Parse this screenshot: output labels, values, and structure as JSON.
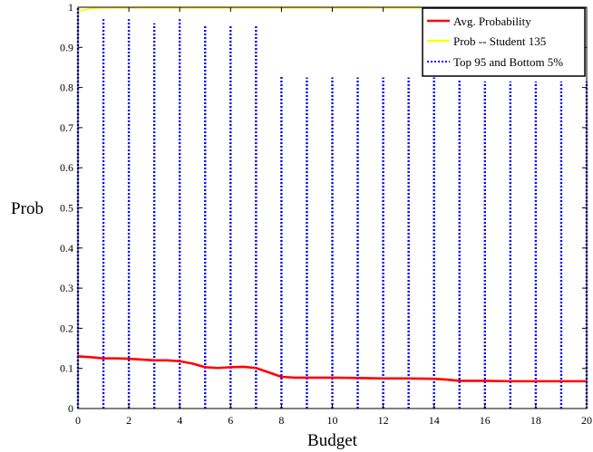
{
  "chart_data": {
    "type": "line",
    "xlabel": "Budget",
    "ylabel": "Prob",
    "xlim": [
      0,
      20
    ],
    "ylim": [
      0,
      1
    ],
    "xticks": [
      0,
      2,
      4,
      6,
      8,
      10,
      12,
      14,
      16,
      18,
      20
    ],
    "yticks": [
      0,
      0.1,
      0.2,
      0.3,
      0.4,
      0.5,
      0.6,
      0.7,
      0.8,
      0.9,
      1
    ],
    "grid": false,
    "legend_position": "top-right",
    "legend": [
      {
        "label": "Avg. Probability",
        "color": "#ff0000",
        "style": "solid"
      },
      {
        "label": "Prob -- Student 135",
        "color": "#ffff00",
        "style": "solid"
      },
      {
        "label": "Top 95 and Bottom 5%",
        "color": "#0000ff",
        "style": "dotted"
      }
    ],
    "series": [
      {
        "name": "Avg. Probability",
        "color": "#ff0000",
        "x": [
          0,
          0.5,
          1,
          1.5,
          2,
          2.5,
          3,
          3.5,
          4,
          4.5,
          5,
          5.5,
          6,
          6.5,
          7,
          7.5,
          8,
          8.5,
          9,
          9.5,
          10,
          11,
          12,
          13,
          14,
          14.5,
          15,
          16,
          17,
          18,
          19,
          20
        ],
        "y": [
          0.13,
          0.128,
          0.125,
          0.125,
          0.124,
          0.122,
          0.12,
          0.12,
          0.118,
          0.112,
          0.103,
          0.101,
          0.103,
          0.104,
          0.101,
          0.09,
          0.079,
          0.077,
          0.077,
          0.077,
          0.077,
          0.076,
          0.075,
          0.075,
          0.074,
          0.072,
          0.069,
          0.069,
          0.068,
          0.068,
          0.068,
          0.068
        ]
      },
      {
        "name": "Prob -- Student 135",
        "color": "#ffff00",
        "x": [
          0,
          0.5,
          1,
          2,
          4,
          6,
          8,
          10,
          12,
          14,
          16,
          18,
          20
        ],
        "y": [
          0.99,
          0.997,
          0.999,
          0.999,
          0.999,
          0.999,
          0.999,
          0.999,
          0.999,
          0.999,
          0.999,
          0.999,
          0.999
        ]
      },
      {
        "name": "Top 95 and Bottom 5%",
        "color": "#0000ff",
        "bars": [
          {
            "x": 0,
            "low": 0,
            "high": 1.0
          },
          {
            "x": 1,
            "low": 0,
            "high": 0.97
          },
          {
            "x": 2,
            "low": 0,
            "high": 0.97
          },
          {
            "x": 3,
            "low": 0,
            "high": 0.96
          },
          {
            "x": 4,
            "low": 0,
            "high": 0.97
          },
          {
            "x": 5,
            "low": 0,
            "high": 0.955
          },
          {
            "x": 6,
            "low": 0,
            "high": 0.955
          },
          {
            "x": 7,
            "low": 0,
            "high": 0.955
          },
          {
            "x": 8,
            "low": 0,
            "high": 0.83
          },
          {
            "x": 9,
            "low": 0,
            "high": 0.825
          },
          {
            "x": 10,
            "low": 0,
            "high": 0.825
          },
          {
            "x": 11,
            "low": 0,
            "high": 0.825
          },
          {
            "x": 12,
            "low": 0,
            "high": 0.825
          },
          {
            "x": 13,
            "low": 0,
            "high": 0.825
          },
          {
            "x": 14,
            "low": 0,
            "high": 0.825
          },
          {
            "x": 15,
            "low": 0,
            "high": 0.82
          },
          {
            "x": 16,
            "low": 0,
            "high": 0.815
          },
          {
            "x": 17,
            "low": 0,
            "high": 0.815
          },
          {
            "x": 18,
            "low": 0,
            "high": 0.815
          },
          {
            "x": 19,
            "low": 0,
            "high": 0.815
          },
          {
            "x": 20,
            "low": 0,
            "high": 0.815
          }
        ]
      }
    ]
  }
}
